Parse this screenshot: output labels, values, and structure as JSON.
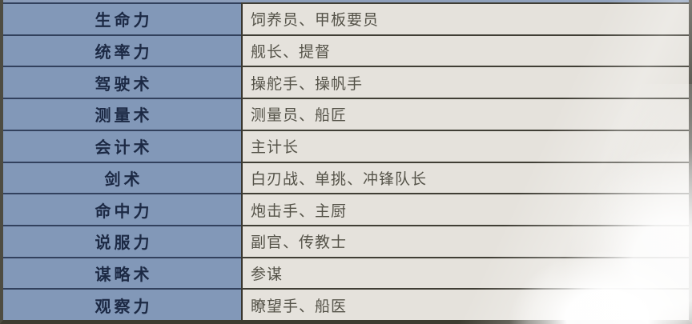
{
  "table": {
    "description_columns": [
      "skill",
      "roles"
    ],
    "rows": [
      {
        "skill": "生命力",
        "roles": "饲养员、甲板要员"
      },
      {
        "skill": "统率力",
        "roles": "舰长、提督"
      },
      {
        "skill": "驾驶术",
        "roles": "操舵手、操帆手"
      },
      {
        "skill": "测量术",
        "roles": "测量员、船匠"
      },
      {
        "skill": "会计术",
        "roles": "主计长"
      },
      {
        "skill": "剑术",
        "roles": "白刃战、单挑、冲锋队长"
      },
      {
        "skill": "命中力",
        "roles": "炮击手、主厨"
      },
      {
        "skill": "说服力",
        "roles": "副官、传教士"
      },
      {
        "skill": "谋略术",
        "roles": "参谋"
      },
      {
        "skill": "观察力",
        "roles": "瞭望手、船医"
      }
    ]
  },
  "colors": {
    "skill_column_bg": "#8298B8",
    "roles_column_bg": "#E5E2DC",
    "skill_text": "#1C2944",
    "roles_text": "#555349",
    "skill_divider": "#32415D",
    "roles_divider": "#403E35",
    "column_divider": "#38362E",
    "frame_border_left": "#4E4C41",
    "frame_border_right": "#55534B",
    "frame_border_bottom": "#3E3C31",
    "top_strip": "#8FA2BD"
  }
}
